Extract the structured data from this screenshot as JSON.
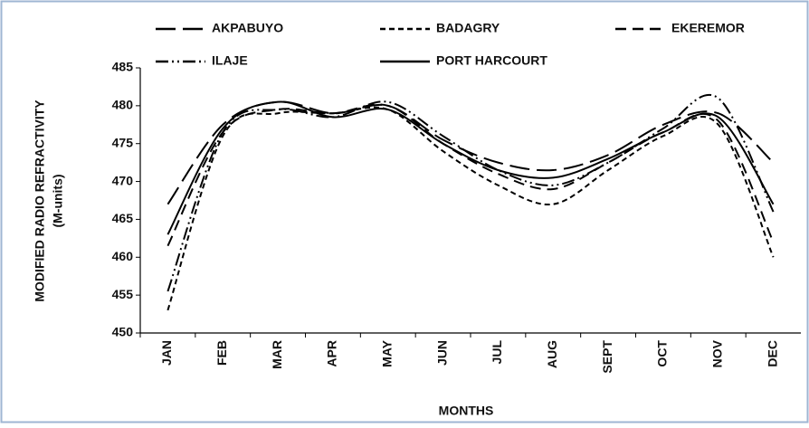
{
  "chart_data": {
    "type": "line",
    "xlabel": "MONTHS",
    "ylabel": [
      "MODIFIED  RADIO REFRACTIVITY",
      "(M-units)"
    ],
    "categories": [
      "JAN",
      "FEB",
      "MAR",
      "APR",
      "MAY",
      "JUN",
      "JUL",
      "AUG",
      "SEPT",
      "OCT",
      "NOV",
      "DEC"
    ],
    "series": [
      {
        "name": "AKPABUYO",
        "color": "#000000",
        "values": [
          467,
          477.5,
          480.5,
          479,
          480,
          475.5,
          472.5,
          471.5,
          473.5,
          477.5,
          479,
          472.5
        ]
      },
      {
        "name": "BADAGRY",
        "color": "#000000",
        "values": [
          453,
          476,
          479,
          479,
          479.5,
          474,
          469.5,
          467,
          471.5,
          476,
          477.5,
          460
        ]
      },
      {
        "name": "EKEREMOR",
        "color": "#000000",
        "values": [
          461.5,
          476.5,
          479.5,
          479,
          480,
          475,
          471,
          469,
          472.5,
          476.5,
          478,
          462
        ]
      },
      {
        "name": "ILAJE",
        "color": "#000000",
        "values": [
          455.5,
          476.5,
          479.5,
          478.5,
          480.5,
          476,
          471.5,
          469.5,
          472.5,
          477,
          481,
          466
        ]
      },
      {
        "name": "PORT HARCOURT",
        "color": "#000000",
        "values": [
          463,
          477,
          480.5,
          478.5,
          479.5,
          475,
          471.5,
          470.5,
          473,
          476.5,
          478.5,
          467
        ]
      }
    ],
    "ylim": [
      450,
      485
    ],
    "yticks": [
      450,
      455,
      460,
      465,
      470,
      475,
      480,
      485
    ],
    "grid": false
  }
}
